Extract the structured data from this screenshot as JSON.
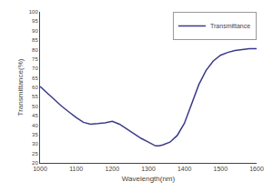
{
  "chart_data": {
    "type": "line",
    "xlabel": "Wavelength(nm)",
    "ylabel": "Transmittance(%)",
    "x": [
      1000,
      1020,
      1040,
      1060,
      1080,
      1100,
      1120,
      1140,
      1160,
      1180,
      1200,
      1220,
      1240,
      1260,
      1280,
      1300,
      1310,
      1320,
      1330,
      1340,
      1360,
      1380,
      1400,
      1420,
      1440,
      1460,
      1480,
      1500,
      1520,
      1540,
      1560,
      1580,
      1600
    ],
    "series": [
      {
        "name": "Transmittance",
        "color": "#3a3a8c",
        "values": [
          60.5,
          57.0,
          53.5,
          50.0,
          47.0,
          44.0,
          41.5,
          40.5,
          40.8,
          41.2,
          42.0,
          40.5,
          38.0,
          35.5,
          33.0,
          31.0,
          30.0,
          29.0,
          29.0,
          29.5,
          31.0,
          34.5,
          41.0,
          51.0,
          61.5,
          69.0,
          74.0,
          77.0,
          78.5,
          79.5,
          80.0,
          80.5,
          80.5
        ]
      }
    ],
    "xlim": [
      1000,
      1600
    ],
    "ylim": [
      20,
      100
    ],
    "xticks": [
      1000,
      1100,
      1200,
      1300,
      1400,
      1500,
      1600
    ],
    "yticks": [
      20,
      25,
      30,
      35,
      40,
      45,
      50,
      55,
      60,
      65,
      70,
      75,
      80,
      85,
      90,
      95,
      100
    ],
    "grid": false,
    "legend": "upper right"
  }
}
